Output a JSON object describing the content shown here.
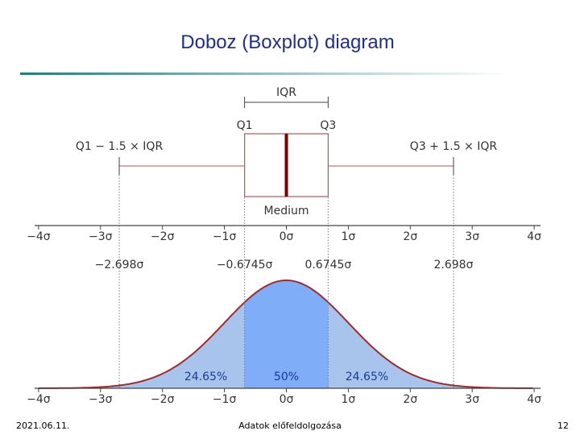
{
  "header": {
    "title": "Doboz (Boxplot) diagram"
  },
  "diagram": {
    "iqr_label": "IQR",
    "q1_label": "Q1",
    "q3_label": "Q3",
    "lower_whisker_label": "Q1 − 1.5 × IQR",
    "upper_whisker_label": "Q3 + 1.5 × IQR",
    "median_label": "Medium",
    "axis_ticks": [
      "−4σ",
      "−3σ",
      "−2σ",
      "−1σ",
      "0σ",
      "1σ",
      "2σ",
      "3σ",
      "4σ"
    ],
    "cut_labels": [
      "−2.698σ",
      "−0.6745σ",
      "0.6745σ",
      "2.698σ"
    ],
    "area_labels": [
      "24.65%",
      "50%",
      "24.65%"
    ]
  },
  "footer": {
    "date": "2021.06.11.",
    "subject": "Adatok előfeldolgozása",
    "page": "12"
  }
}
